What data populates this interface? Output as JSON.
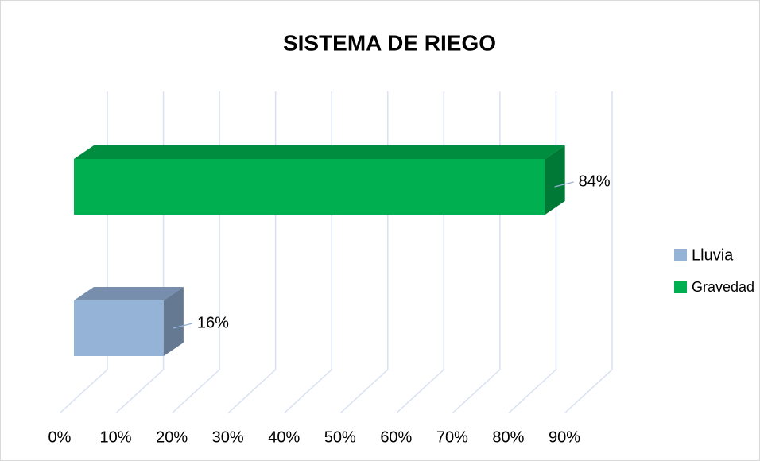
{
  "chart_data": {
    "type": "bar",
    "orientation": "horizontal",
    "title": "SISTEMA DE RIEGO",
    "series": [
      {
        "name": "Lluvia",
        "color": "#95b3d7",
        "values": [
          16
        ],
        "value_labels": [
          "16%"
        ]
      },
      {
        "name": "Gravedad",
        "color": "#00b050",
        "values": [
          84
        ],
        "value_labels": [
          "84%"
        ]
      }
    ],
    "xlim": [
      0,
      90
    ],
    "xticks": [
      {
        "value": 0,
        "label": "0%"
      },
      {
        "value": 10,
        "label": "10%"
      },
      {
        "value": 20,
        "label": "20%"
      },
      {
        "value": 30,
        "label": "30%"
      },
      {
        "value": 40,
        "label": "40%"
      },
      {
        "value": 50,
        "label": "50%"
      },
      {
        "value": 60,
        "label": "60%"
      },
      {
        "value": 70,
        "label": "70%"
      },
      {
        "value": 80,
        "label": "80%"
      },
      {
        "value": 90,
        "label": "90%"
      }
    ],
    "grid": true,
    "legend": "right"
  }
}
